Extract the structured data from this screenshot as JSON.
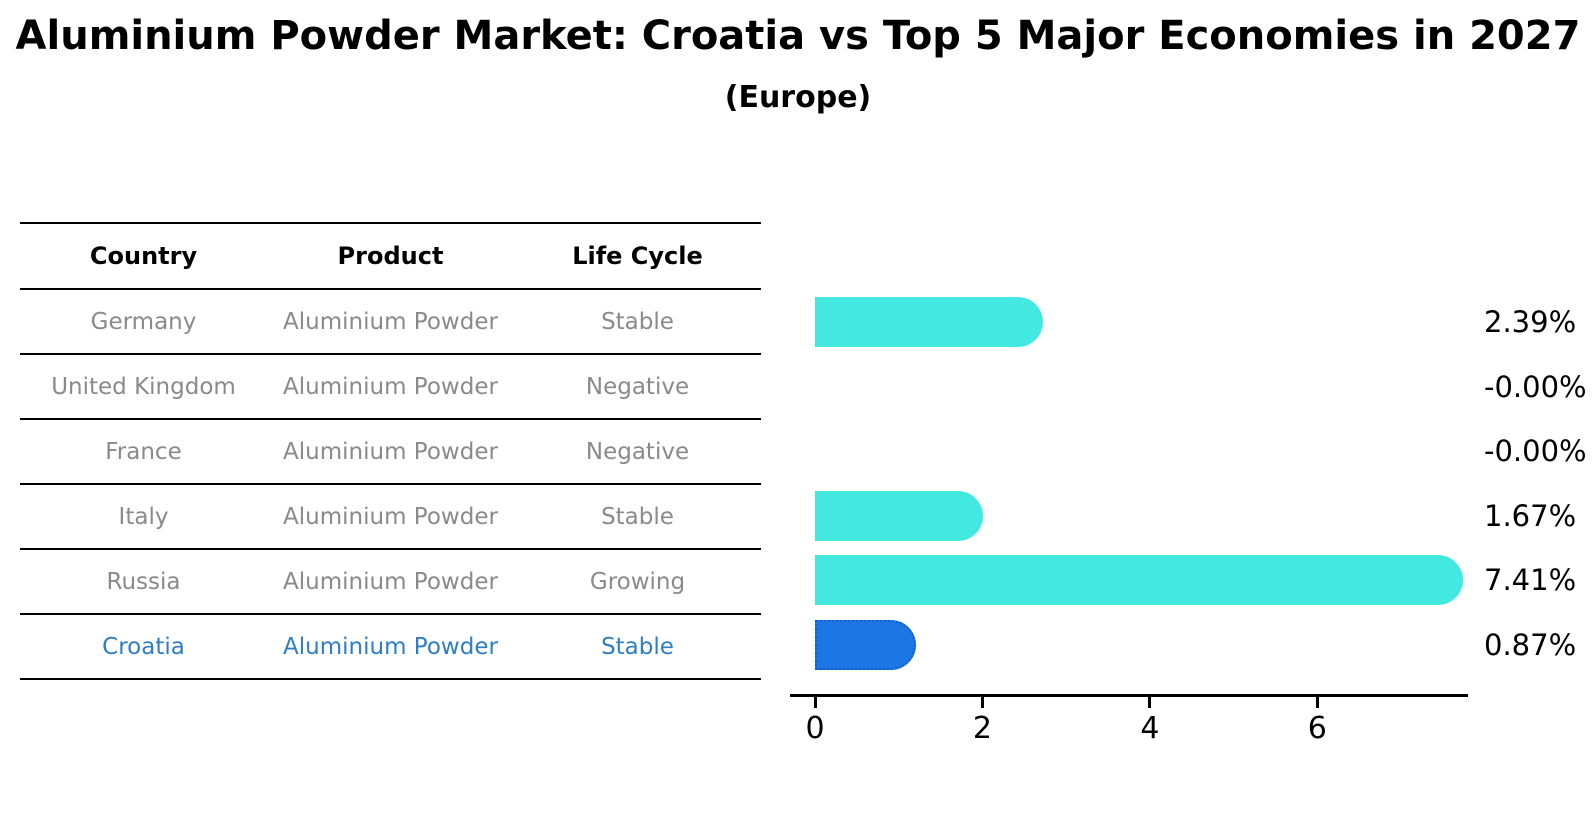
{
  "chart_data": {
    "type": "bar",
    "orientation": "horizontal",
    "title": "Aluminium Powder Market: Croatia vs Top 5 Major Economies in 2027",
    "subtitle": "(Europe)",
    "categories": [
      "Germany",
      "United Kingdom",
      "France",
      "Italy",
      "Russia",
      "Croatia"
    ],
    "values": [
      2.39,
      -0.0,
      -0.0,
      1.67,
      7.41,
      0.87
    ],
    "value_labels": [
      "2.39%",
      "-0.00%",
      "-0.00%",
      "1.67%",
      "7.41%",
      "0.87%"
    ],
    "xticks": [
      "0",
      "2",
      "4",
      "6"
    ],
    "xtick_values": [
      0,
      2,
      4,
      6
    ],
    "xlim": [
      0,
      7.8
    ],
    "grid": false,
    "legend": "none",
    "bar_color": "#43e8e1",
    "highlight_bar_color": "#1c76e3",
    "highlight_index": 5
  },
  "table": {
    "headers": [
      "Country",
      "Product",
      "Life Cycle"
    ],
    "rows": [
      {
        "country": "Germany",
        "product": "Aluminium Powder",
        "life_cycle": "Stable"
      },
      {
        "country": "United Kingdom",
        "product": "Aluminium Powder",
        "life_cycle": "Negative"
      },
      {
        "country": "France",
        "product": "Aluminium Powder",
        "life_cycle": "Negative"
      },
      {
        "country": "Italy",
        "product": "Aluminium Powder",
        "life_cycle": "Stable"
      },
      {
        "country": "Russia",
        "product": "Aluminium Powder",
        "life_cycle": "Growing"
      },
      {
        "country": "Croatia",
        "product": "Aluminium Powder",
        "life_cycle": "Stable"
      }
    ],
    "highlight_row": "Croatia"
  },
  "colors": {
    "bar_cyan": "#43e8e1",
    "bar_blue": "#1c76e3",
    "highlight_text_blue": "#2e7ec3",
    "table_text_gray": "#8a8a8a",
    "axis_black": "#000000"
  }
}
